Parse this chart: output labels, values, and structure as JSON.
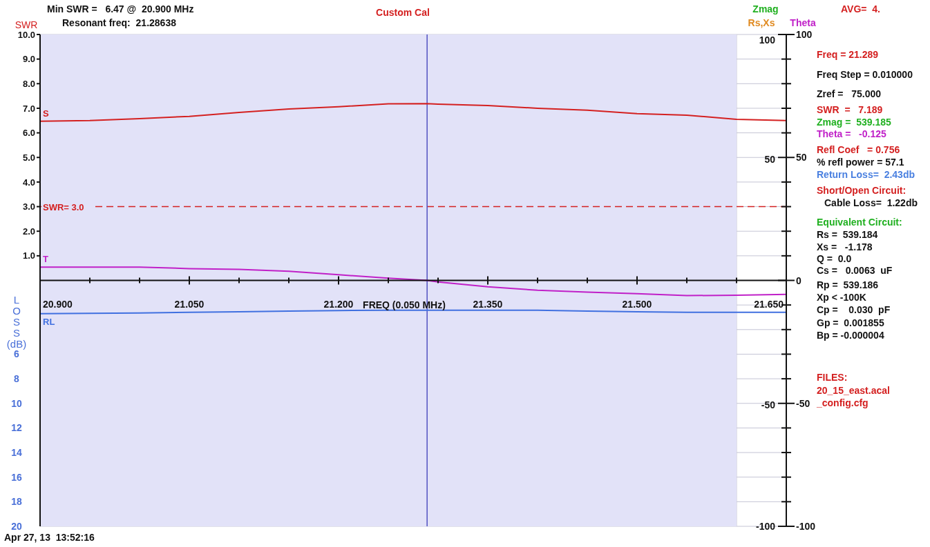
{
  "chart_data": {
    "type": "line",
    "title": "Custom Cal",
    "xlabel": "FREQ (0.050 MHz)",
    "ylabel": "SWR",
    "y2label": "LOSS (dB)",
    "x": [
      20.9,
      20.95,
      21.0,
      21.05,
      21.1,
      21.15,
      21.2,
      21.25,
      21.289,
      21.3,
      21.35,
      21.4,
      21.45,
      21.5,
      21.55,
      21.6,
      21.65
    ],
    "series": [
      {
        "name": "S",
        "color": "#d42020",
        "values": [
          6.47,
          6.5,
          6.58,
          6.67,
          6.83,
          6.97,
          7.06,
          7.18,
          7.19,
          7.17,
          7.11,
          7.0,
          6.92,
          6.78,
          6.72,
          6.55,
          6.5
        ]
      },
      {
        "name": "T",
        "color": "#c020c8",
        "axis": "y3",
        "values": [
          5.4,
          5.4,
          5.4,
          4.8,
          4.5,
          3.7,
          2.3,
          0.9,
          0,
          -0.6,
          -2.6,
          -4.0,
          -4.8,
          -5.4,
          -6.2,
          -6.0,
          -5.7
        ]
      },
      {
        "name": "RL",
        "color": "#4070e0",
        "axis": "y2",
        "values": [
          2.7,
          2.68,
          2.65,
          2.6,
          2.55,
          2.5,
          2.45,
          2.43,
          2.43,
          2.43,
          2.43,
          2.43,
          2.5,
          2.55,
          2.6,
          2.6,
          2.6
        ]
      }
    ],
    "xlim": [
      20.9,
      21.65
    ],
    "xticks": [
      {
        "value": 20.9,
        "label": "20.900"
      },
      {
        "value": 20.95,
        "label": null
      },
      {
        "value": 21.0,
        "label": null
      },
      {
        "value": 21.05,
        "label": "21.050"
      },
      {
        "value": 21.1,
        "label": null
      },
      {
        "value": 21.15,
        "label": null
      },
      {
        "value": 21.2,
        "label": "21.200"
      },
      {
        "value": 21.25,
        "label": null
      },
      {
        "value": 21.3,
        "label": null
      },
      {
        "value": 21.35,
        "label": "21.350"
      },
      {
        "value": 21.4,
        "label": null
      },
      {
        "value": 21.45,
        "label": null
      },
      {
        "value": 21.5,
        "label": "21.500"
      },
      {
        "value": 21.55,
        "label": null
      },
      {
        "value": 21.6,
        "label": null
      },
      {
        "value": 21.65,
        "label": "21.650"
      }
    ],
    "ylim": [
      -10,
      10
    ],
    "yticks": [
      {
        "value": 1,
        "label": "1.0"
      },
      {
        "value": 2,
        "label": "2.0"
      },
      {
        "value": 3,
        "label": "3.0"
      },
      {
        "value": 4,
        "label": "4.0"
      },
      {
        "value": 5,
        "label": "5.0"
      },
      {
        "value": 6,
        "label": "6.0"
      },
      {
        "value": 7,
        "label": "7.0"
      },
      {
        "value": 8,
        "label": "8.0"
      },
      {
        "value": 9,
        "label": "9.0"
      },
      {
        "value": 10,
        "label": "10.0"
      }
    ],
    "y2lim": [
      20,
      -20
    ],
    "y2ticks": [
      6,
      8,
      10,
      12,
      14,
      16,
      18,
      20
    ],
    "y3lim": [
      -100,
      100
    ],
    "y3ticks": [
      100,
      {
        "value": 90,
        "label": null
      },
      {
        "value": 80,
        "label": null
      },
      {
        "value": 70,
        "label": null
      },
      {
        "value": 60,
        "label": null
      },
      50,
      {
        "value": 40,
        "label": null
      },
      {
        "value": 30,
        "label": null
      },
      {
        "value": 20,
        "label": null
      },
      {
        "value": 10,
        "label": null
      },
      0,
      {
        "value": -10,
        "label": null
      },
      {
        "value": -20,
        "label": null
      },
      {
        "value": -30,
        "label": null
      },
      {
        "value": -40,
        "label": null
      },
      -50,
      {
        "value": -60,
        "label": null
      },
      {
        "value": -70,
        "label": null
      },
      {
        "value": -80,
        "label": null
      },
      {
        "value": -90,
        "label": null
      },
      -100
    ],
    "grid": true,
    "line_style": "solid",
    "marker": "none",
    "ref_lines": [
      {
        "axis": "y",
        "value": 3,
        "label": "SWR= 3.0",
        "color": "#d42020",
        "line_style": "dashed"
      },
      {
        "axis": "x",
        "value": 21.289,
        "label": null,
        "color": "#5050c0",
        "line_style": "solid"
      }
    ],
    "bands": [
      {
        "axis": "x",
        "from": 20.9,
        "to": 21.6,
        "label": null,
        "color": "#e2e2f8"
      }
    ],
    "annotations": [
      "Min SWR =   6.47 @  20.900 MHz",
      "Resonant freq:  21.28638",
      "Zmag",
      "Rs,Xs",
      "Theta",
      "AVG=  4.",
      "Freq = 21.289",
      "Freq Step = 0.010000",
      "Zref =   75.000",
      "SWR  =   7.189",
      "Zmag =  539.185",
      "Theta =   -0.125",
      "Refl Coef   = 0.756",
      "% refl power = 57.1",
      "Return Loss=  2.43db",
      "Short/Open Circuit:",
      "Cable Loss=  1.22db",
      "Equivalent Circuit:",
      "Rs =  539.184",
      "Xs =   -1.178",
      "Q =  0.0",
      "Cs =   0.0063  uF",
      "Rp =  539.186",
      "Xp < -100K",
      "Cp =    0.030  pF",
      "Gp =  0.001855",
      "Bp = -0.000004",
      "FILES:",
      "20_15_east.acal",
      "_config.cfg",
      "Apr 27, 13  13:52:16",
      "100",
      "50",
      "-50",
      "-100"
    ]
  }
}
